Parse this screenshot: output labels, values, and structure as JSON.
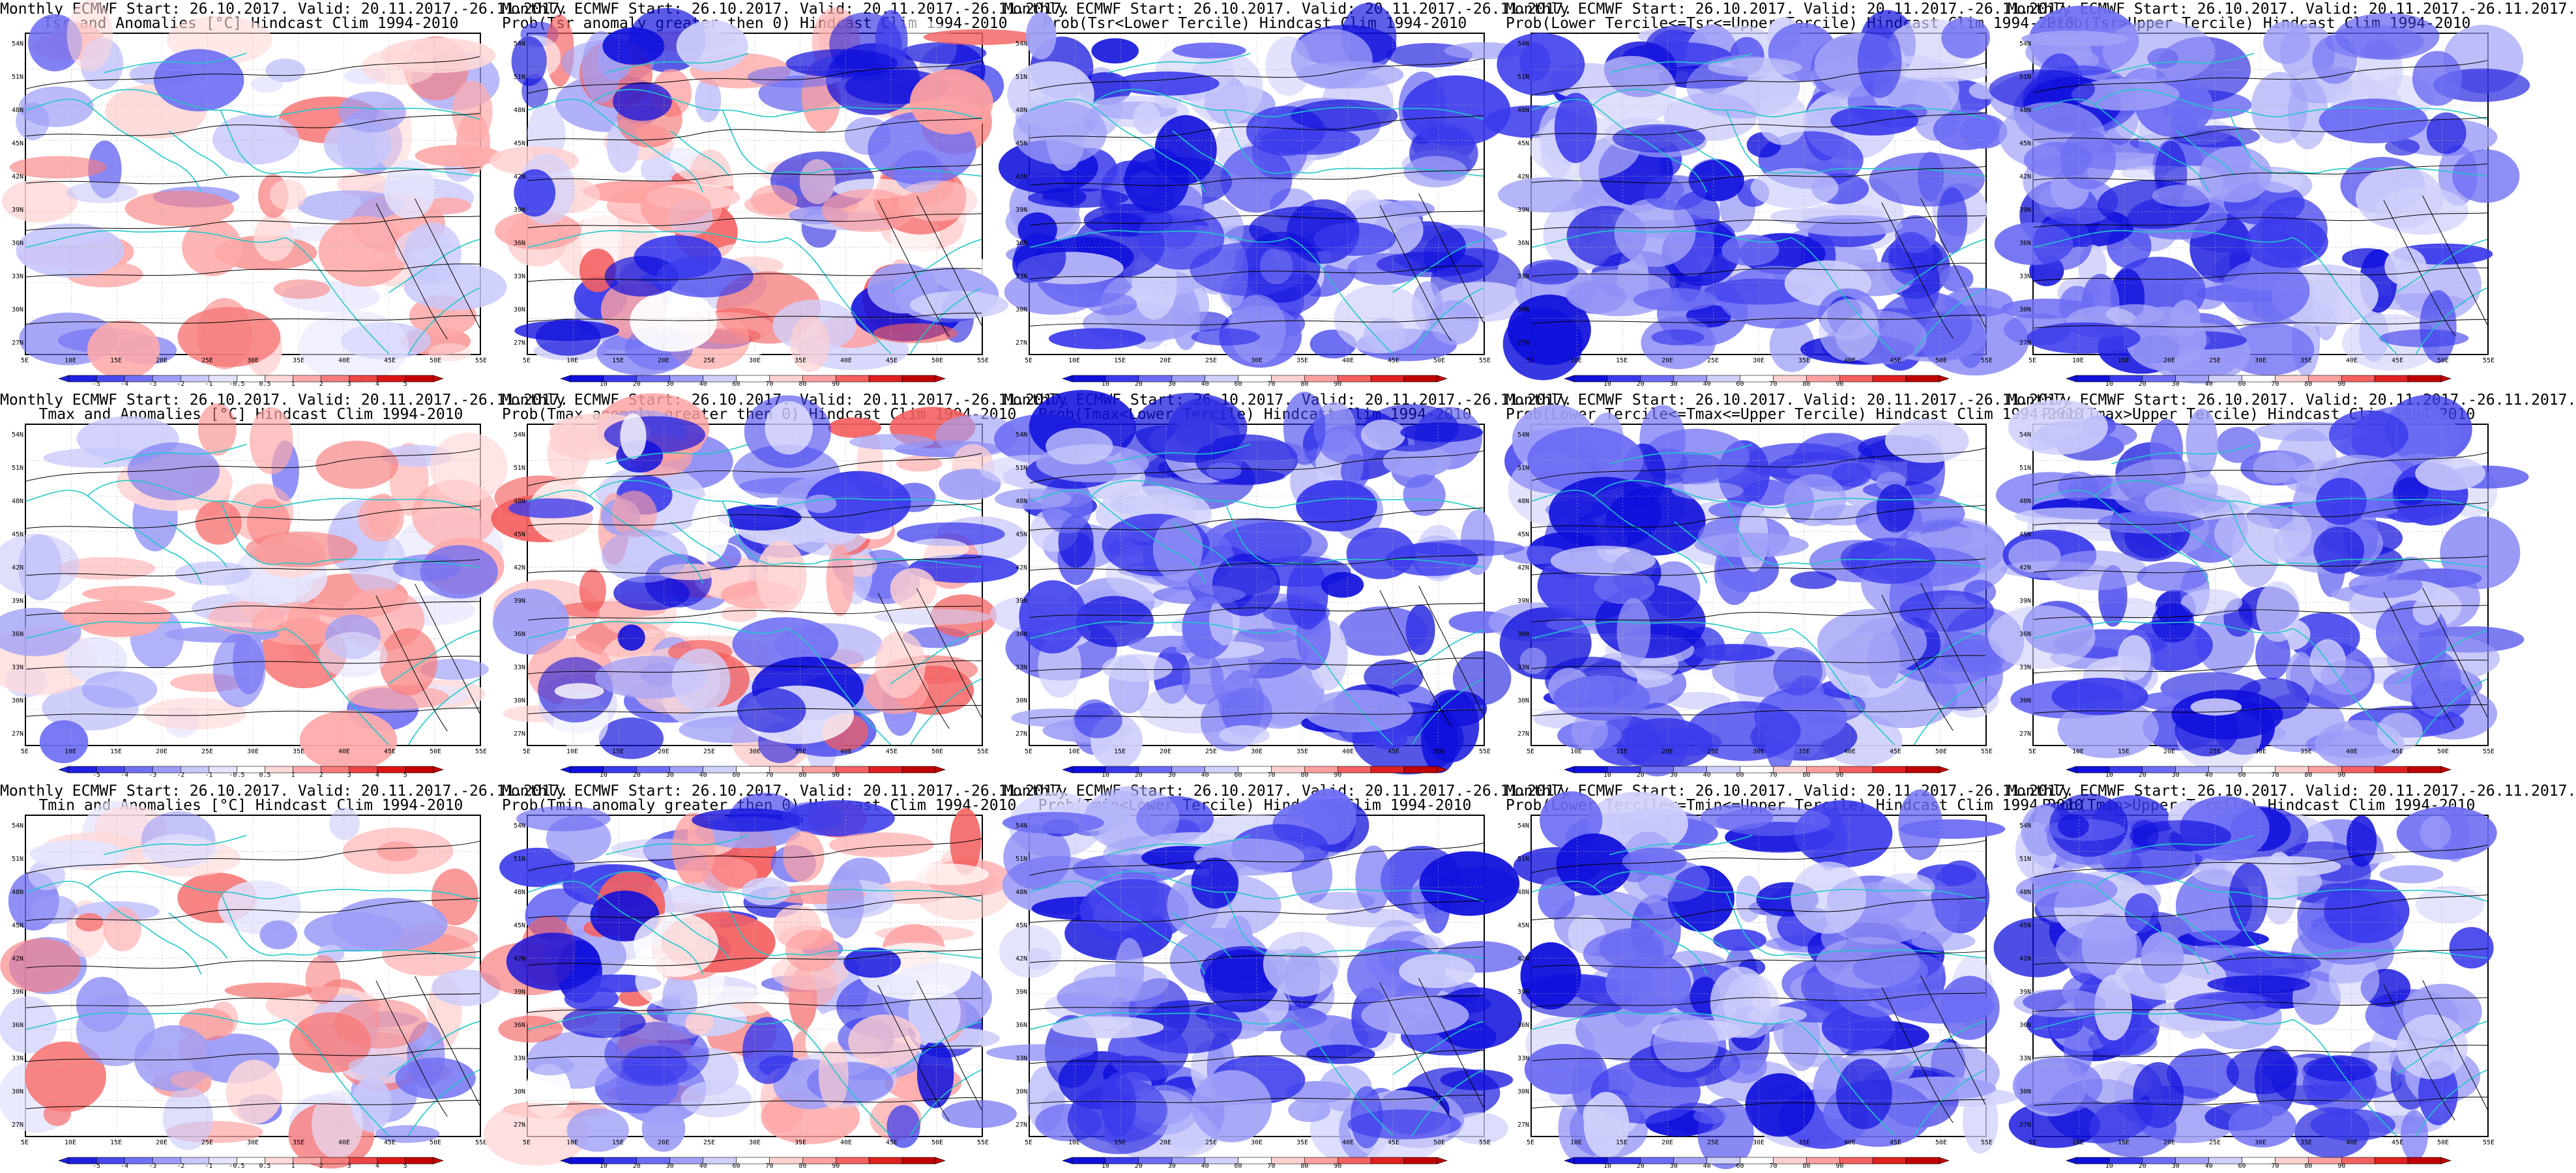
{
  "panels": [
    {
      "title1": "Monthly ECMWF Start: 26.10.2017. Valid: 20.11.2017.-26.11.2017.",
      "title2": "Tsr and Anomalies [°C] Hindcast Clim 1994-2010",
      "kind": "anom",
      "colorbar": [
        "-5",
        "-4",
        "-3",
        "-2",
        "-1",
        "-0.5",
        "0.5",
        "1",
        "2",
        "3",
        "4",
        "5"
      ]
    },
    {
      "title1": "Monthly ECMWF Start: 26.10.2017. Valid: 20.11.2017.-26.11.2017.",
      "title2": "Prob(Tsr anomaly greater then 0) Hindcast Clim 1994-2010",
      "kind": "prob",
      "colorbar": [
        "10",
        "20",
        "30",
        "40",
        "60",
        "70",
        "80",
        "90"
      ]
    },
    {
      "title1": "Monthly ECMWF Start: 26.10.2017. Valid: 20.11.2017.-26.11.2017.",
      "title2": "Prob(Tsr<Lower Tercile) Hindcast Clim 1994-2010",
      "kind": "terc",
      "colorbar": [
        "10",
        "20",
        "30",
        "40",
        "60",
        "70",
        "80",
        "90"
      ]
    },
    {
      "title1": "Monthly ECMWF Start: 26.10.2017. Valid: 20.11.2017.-26.11.2017.",
      "title2": "Prob(Lower Tercile<=Tsr<=Upper Tercile) Hindcast Clim 1994-2010",
      "kind": "terc",
      "colorbar": [
        "10",
        "20",
        "30",
        "40",
        "60",
        "70",
        "80",
        "90"
      ]
    },
    {
      "title1": "Monthly ECMWF Start: 26.10.2017. Valid: 20.11.2017.-26.11.2017.",
      "title2": "Prob(Tsr>Upper Tercile) Hindcast Clim 1994-2010",
      "kind": "terc",
      "colorbar": [
        "10",
        "20",
        "30",
        "40",
        "60",
        "70",
        "80",
        "90"
      ]
    },
    {
      "title1": "Monthly ECMWF Start: 26.10.2017. Valid: 20.11.2017.-26.11.2017.",
      "title2": "Tmax and Anomalies [°C] Hindcast Clim 1994-2010",
      "kind": "anom",
      "colorbar": [
        "-5",
        "-4",
        "-3",
        "-2",
        "-1",
        "-0.5",
        "0.5",
        "1",
        "2",
        "3",
        "4",
        "5"
      ]
    },
    {
      "title1": "Monthly ECMWF Start: 26.10.2017. Valid: 20.11.2017.-26.11.2017.",
      "title2": "Prob(Tmax anomaly greater then 0) Hindcast Clim 1994-2010",
      "kind": "prob",
      "colorbar": [
        "10",
        "20",
        "30",
        "40",
        "60",
        "70",
        "80",
        "90"
      ]
    },
    {
      "title1": "Monthly ECMWF Start: 26.10.2017. Valid: 20.11.2017.-26.11.2017.",
      "title2": "Prob(Tmax<Lower Tercile) Hindcast Clim 1994-2010",
      "kind": "terc",
      "colorbar": [
        "10",
        "20",
        "30",
        "40",
        "60",
        "70",
        "80",
        "90"
      ]
    },
    {
      "title1": "Monthly ECMWF Start: 26.10.2017. Valid: 20.11.2017.-26.11.2017.",
      "title2": "Prob(Lower Tercile<=Tmax<=Upper Tercile) Hindcast Clim 1994-2010",
      "kind": "terc",
      "colorbar": [
        "10",
        "20",
        "30",
        "40",
        "60",
        "70",
        "80",
        "90"
      ]
    },
    {
      "title1": "Monthly ECMWF Start: 26.10.2017. Valid: 20.11.2017.-26.11.2017.",
      "title2": "Prob(Tmax>Upper Tercile) Hindcast Clim 1994-2010",
      "kind": "terc",
      "colorbar": [
        "10",
        "20",
        "30",
        "40",
        "60",
        "70",
        "80",
        "90"
      ]
    },
    {
      "title1": "Monthly ECMWF Start: 26.10.2017. Valid: 20.11.2017.-26.11.2017.",
      "title2": "Tmin and Anomalies [°C] Hindcast Clim 1994-2010",
      "kind": "anom",
      "colorbar": [
        "-5",
        "-4",
        "-3",
        "-2",
        "-1",
        "-0.5",
        "0.5",
        "1",
        "2",
        "3",
        "4",
        "5"
      ]
    },
    {
      "title1": "Monthly ECMWF Start: 26.10.2017. Valid: 20.11.2017.-26.11.2017.",
      "title2": "Prob(Tmin anomaly greater then 0) Hindcast Clim 1994-2010",
      "kind": "prob",
      "colorbar": [
        "10",
        "20",
        "30",
        "40",
        "60",
        "70",
        "80",
        "90"
      ]
    },
    {
      "title1": "Monthly ECMWF Start: 26.10.2017. Valid: 20.11.2017.-26.11.2017.",
      "title2": "Prob(Tmin<Lower Tercile) Hindcast Clim 1994-2010",
      "kind": "terc",
      "colorbar": [
        "10",
        "20",
        "30",
        "40",
        "60",
        "70",
        "80",
        "90"
      ]
    },
    {
      "title1": "Monthly ECMWF Start: 26.10.2017. Valid: 20.11.2017.-26.11.2017.",
      "title2": "Prob(Lower Tercile<=Tmin<=Upper Tercile) Hindcast Clim 1994-2010",
      "kind": "terc",
      "colorbar": [
        "10",
        "20",
        "30",
        "40",
        "60",
        "70",
        "80",
        "90"
      ]
    },
    {
      "title1": "Monthly ECMWF Start: 26.10.2017. Valid: 20.11.2017.-26.11.2017.",
      "title2": "Prob(Tmin>Upper Tercile) Hindcast Clim 1994-2010",
      "kind": "terc",
      "colorbar": [
        "10",
        "20",
        "30",
        "40",
        "60",
        "70",
        "80",
        "90"
      ]
    }
  ],
  "lat_labels": [
    "54N",
    "51N",
    "48N",
    "45N",
    "42N",
    "39N",
    "36N",
    "33N",
    "30N",
    "27N"
  ],
  "lon_labels": [
    "5E",
    "10E",
    "15E",
    "20E",
    "25E",
    "30E",
    "35E",
    "40E",
    "45E",
    "50E",
    "55E"
  ],
  "colors": {
    "contour_terrain": "#20c8c8",
    "contour_temp": "#000000",
    "anom_scale": [
      "#2020e0",
      "#4848ee",
      "#7070f4",
      "#9c9cf8",
      "#c8c8fc",
      "#e4e4ff",
      "#ffffff",
      "#ffd8d8",
      "#ffaaaa",
      "#f87c7c",
      "#ee4444",
      "#dd1414",
      "#c40000"
    ],
    "prob_scale": [
      "#1010dc",
      "#3a3aec",
      "#6c6cf4",
      "#a0a0f8",
      "#d0d0fc",
      "#ffffff",
      "#ffd0d0",
      "#ffa0a0",
      "#f46060",
      "#e02020",
      "#c00000"
    ]
  }
}
